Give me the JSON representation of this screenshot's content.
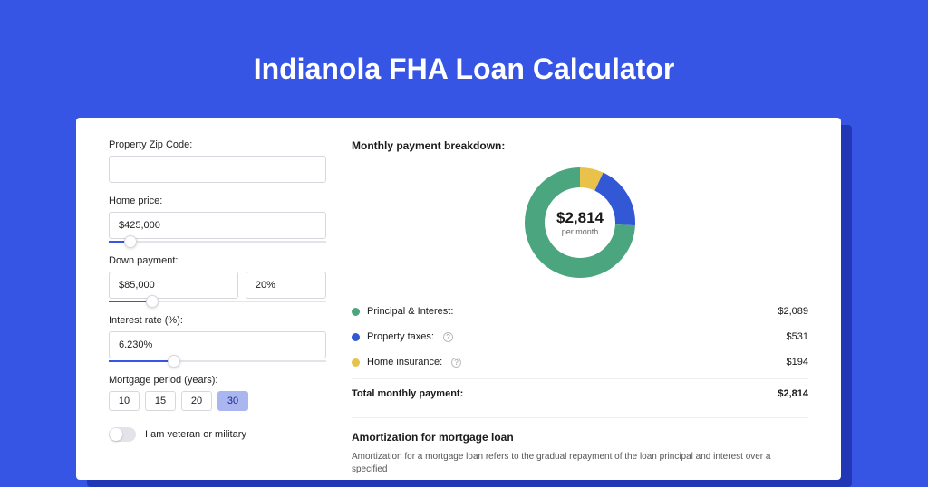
{
  "page": {
    "title": "Indianola FHA Loan Calculator",
    "background_color": "#3755e5"
  },
  "form": {
    "zip": {
      "label": "Property Zip Code:",
      "value": ""
    },
    "home_price": {
      "label": "Home price:",
      "value": "$425,000",
      "slider_pct": 10
    },
    "down_payment": {
      "label": "Down payment:",
      "amount": "$85,000",
      "percent": "20%",
      "slider_pct": 20
    },
    "interest_rate": {
      "label": "Interest rate (%):",
      "value": "6.230%",
      "slider_pct": 30
    },
    "mortgage_period": {
      "label": "Mortgage period (years):",
      "options": [
        "10",
        "15",
        "20",
        "30"
      ],
      "selected": "30"
    },
    "veteran": {
      "label": "I am veteran or military",
      "checked": false
    }
  },
  "breakdown": {
    "title": "Monthly payment breakdown:",
    "center_amount": "$2,814",
    "center_sub": "per month",
    "items": [
      {
        "label": "Principal & Interest:",
        "value": "$2,089",
        "color": "#4ba57f",
        "pct": 74.2,
        "info": false
      },
      {
        "label": "Property taxes:",
        "value": "$531",
        "color": "#3358d6",
        "pct": 18.9,
        "info": true
      },
      {
        "label": "Home insurance:",
        "value": "$194",
        "color": "#e8c24a",
        "pct": 6.9,
        "info": true
      }
    ],
    "total_label": "Total monthly payment:",
    "total_value": "$2,814"
  },
  "amortization": {
    "title": "Amortization for mortgage loan",
    "text": "Amortization for a mortgage loan refers to the gradual repayment of the loan principal and interest over a specified"
  },
  "donut": {
    "thickness": 22,
    "radius": 50
  }
}
